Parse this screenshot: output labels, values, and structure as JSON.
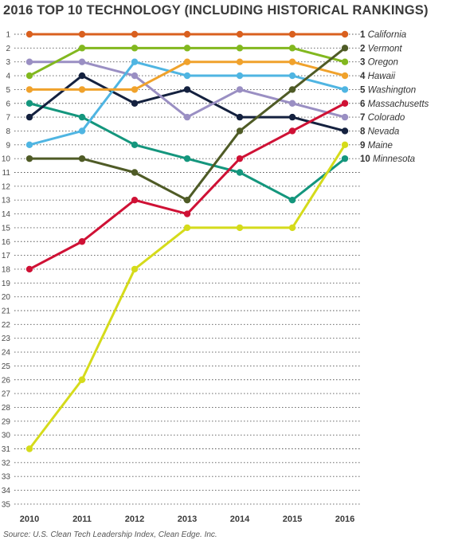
{
  "chart_data": {
    "type": "line",
    "title": "2016 TOP 10 TECHNOLOGY (INCLUDING HISTORICAL RANKINGS)",
    "source": "Source: U.S. Clean Tech Leadership Index, Clean Edge. Inc.",
    "x": [
      "2010",
      "2011",
      "2012",
      "2013",
      "2014",
      "2015",
      "2016"
    ],
    "ylim": [
      1,
      35
    ],
    "y_reversed": true,
    "y_ticks": [
      1,
      2,
      3,
      4,
      5,
      6,
      7,
      8,
      9,
      10,
      11,
      12,
      13,
      14,
      15,
      16,
      17,
      18,
      19,
      20,
      21,
      22,
      23,
      24,
      25,
      26,
      27,
      28,
      29,
      30,
      31,
      32,
      33,
      34,
      35
    ],
    "grid": "dotted-horizontal",
    "legend": "right-end-labels",
    "series": [
      {
        "name": "California",
        "rank_label": "1",
        "color": "#d9601f",
        "values": [
          1,
          1,
          1,
          1,
          1,
          1,
          1
        ]
      },
      {
        "name": "Vermont",
        "rank_label": "2",
        "color": "#4f5b26",
        "values": [
          10,
          10,
          11,
          13,
          8,
          5,
          2
        ]
      },
      {
        "name": "Oregon",
        "rank_label": "3",
        "color": "#82b81f",
        "values": [
          4,
          2,
          2,
          2,
          2,
          2,
          3
        ]
      },
      {
        "name": "Hawaii",
        "rank_label": "4",
        "color": "#f0a22c",
        "values": [
          5,
          5,
          5,
          3,
          3,
          3,
          4
        ]
      },
      {
        "name": "Washington",
        "rank_label": "5",
        "color": "#4fb5e2",
        "values": [
          9,
          8,
          3,
          4,
          4,
          4,
          5
        ]
      },
      {
        "name": "Massachusetts",
        "rank_label": "6",
        "color": "#cf1135",
        "values": [
          18,
          16,
          13,
          14,
          10,
          8,
          6
        ]
      },
      {
        "name": "Colorado",
        "rank_label": "7",
        "color": "#9a8fc3",
        "values": [
          3,
          3,
          4,
          7,
          5,
          6,
          7
        ]
      },
      {
        "name": "Nevada",
        "rank_label": "8",
        "color": "#14213f",
        "values": [
          7,
          4,
          6,
          5,
          7,
          7,
          8
        ]
      },
      {
        "name": "Maine",
        "rank_label": "9",
        "color": "#d5db1b",
        "values": [
          31,
          26,
          18,
          15,
          15,
          15,
          9
        ]
      },
      {
        "name": "Minnesota",
        "rank_label": "10",
        "color": "#14967d",
        "values": [
          6,
          7,
          9,
          10,
          11,
          13,
          10
        ]
      }
    ]
  }
}
